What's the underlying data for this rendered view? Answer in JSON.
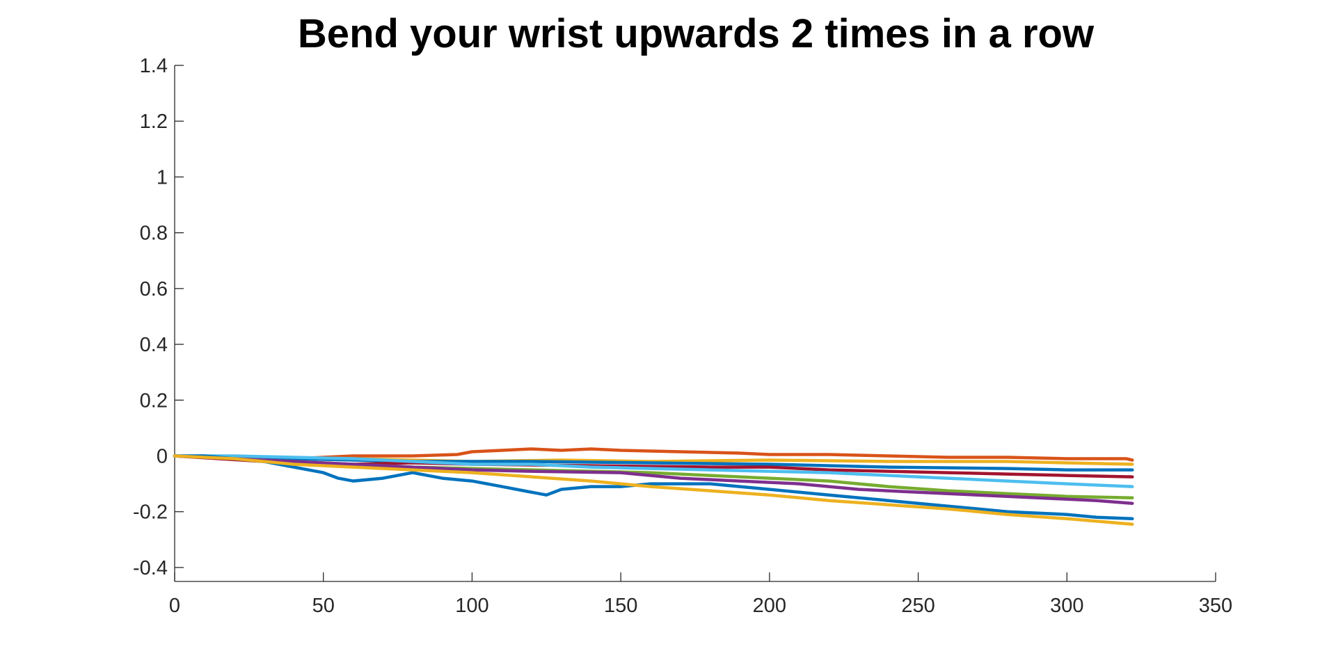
{
  "chart_data": {
    "type": "line",
    "title": "Bend your wrist upwards 2 times in a row",
    "xlabel": "",
    "ylabel": "",
    "xlim": [
      0,
      350
    ],
    "ylim": [
      -0.45,
      1.4
    ],
    "x_ticks": [
      0,
      50,
      100,
      150,
      200,
      250,
      300,
      350
    ],
    "x_tick_labels": [
      "0",
      "50",
      "100",
      "150",
      "200",
      "250",
      "300",
      "350"
    ],
    "y_ticks": [
      -0.4,
      -0.2,
      0,
      0.2,
      0.4,
      0.6,
      0.8,
      1,
      1.2,
      1.4
    ],
    "y_tick_labels": [
      "-0.4",
      "-0.2",
      "0",
      "0.2",
      "0.4",
      "0.6",
      "0.8",
      "1",
      "1.2",
      "1.4"
    ],
    "grid": false,
    "legend": "none",
    "series": [
      {
        "color": "#D95319",
        "x": [
          0,
          20,
          40,
          60,
          80,
          95,
          100,
          110,
          120,
          130,
          140,
          150,
          170,
          190,
          200,
          220,
          240,
          260,
          280,
          300,
          310,
          320,
          322
        ],
        "y": [
          0,
          -0.01,
          -0.01,
          0,
          0,
          0.005,
          0.015,
          0.02,
          0.025,
          0.02,
          0.025,
          0.02,
          0.015,
          0.01,
          0.005,
          0.005,
          0,
          -0.005,
          -0.005,
          -0.01,
          -0.01,
          -0.01,
          -0.015
        ]
      },
      {
        "color": "#EDB120",
        "x": [
          0,
          20,
          40,
          60,
          80,
          100,
          130,
          160,
          200,
          240,
          280,
          300,
          322
        ],
        "y": [
          0,
          -0.005,
          -0.01,
          -0.01,
          -0.015,
          -0.02,
          -0.015,
          -0.02,
          -0.015,
          -0.02,
          -0.02,
          -0.025,
          -0.03
        ]
      },
      {
        "color": "#0072BD",
        "x": [
          0,
          40,
          80,
          120,
          160,
          200,
          240,
          280,
          300,
          322
        ],
        "y": [
          0,
          -0.01,
          -0.02,
          -0.02,
          -0.025,
          -0.03,
          -0.04,
          -0.045,
          -0.05,
          -0.05
        ]
      },
      {
        "color": "#A2142F",
        "x": [
          0,
          30,
          60,
          80,
          100,
          140,
          180,
          200,
          220,
          240,
          260,
          280,
          300,
          322
        ],
        "y": [
          0,
          -0.02,
          -0.03,
          -0.025,
          -0.03,
          -0.035,
          -0.04,
          -0.04,
          -0.05,
          -0.055,
          -0.06,
          -0.065,
          -0.07,
          -0.075
        ]
      },
      {
        "color": "#4DBEEE",
        "x": [
          0,
          20,
          40,
          60,
          80,
          100,
          120,
          140,
          160,
          180,
          200,
          220,
          240,
          260,
          280,
          300,
          322
        ],
        "y": [
          0,
          0,
          -0.005,
          -0.01,
          -0.02,
          -0.03,
          -0.03,
          -0.04,
          -0.045,
          -0.05,
          -0.055,
          -0.06,
          -0.07,
          -0.08,
          -0.09,
          -0.1,
          -0.11
        ]
      },
      {
        "color": "#77AC30",
        "x": [
          0,
          40,
          80,
          120,
          160,
          180,
          200,
          220,
          240,
          260,
          280,
          300,
          322
        ],
        "y": [
          0,
          -0.02,
          -0.04,
          -0.05,
          -0.06,
          -0.07,
          -0.08,
          -0.09,
          -0.11,
          -0.125,
          -0.135,
          -0.145,
          -0.15
        ]
      },
      {
        "color": "#7E2F8E",
        "x": [
          0,
          40,
          80,
          100,
          120,
          150,
          170,
          190,
          210,
          230,
          250,
          270,
          290,
          310,
          322
        ],
        "y": [
          0,
          -0.02,
          -0.04,
          -0.05,
          -0.055,
          -0.06,
          -0.08,
          -0.09,
          -0.1,
          -0.12,
          -0.13,
          -0.14,
          -0.15,
          -0.16,
          -0.17
        ]
      },
      {
        "color": "#0072BD",
        "x": [
          0,
          10,
          20,
          30,
          40,
          50,
          55,
          60,
          70,
          80,
          90,
          100,
          110,
          120,
          125,
          130,
          140,
          150,
          160,
          180,
          200,
          220,
          240,
          260,
          280,
          300,
          310,
          322
        ],
        "y": [
          0,
          0,
          -0.01,
          -0.02,
          -0.04,
          -0.06,
          -0.08,
          -0.09,
          -0.08,
          -0.06,
          -0.08,
          -0.09,
          -0.11,
          -0.13,
          -0.14,
          -0.12,
          -0.11,
          -0.11,
          -0.1,
          -0.1,
          -0.12,
          -0.14,
          -0.16,
          -0.18,
          -0.2,
          -0.21,
          -0.22,
          -0.225
        ]
      },
      {
        "color": "#EDB120",
        "x": [
          0,
          20,
          40,
          60,
          80,
          100,
          120,
          140,
          160,
          180,
          200,
          220,
          240,
          260,
          280,
          300,
          322
        ],
        "y": [
          0,
          -0.01,
          -0.03,
          -0.04,
          -0.05,
          -0.06,
          -0.075,
          -0.09,
          -0.11,
          -0.125,
          -0.14,
          -0.16,
          -0.175,
          -0.19,
          -0.21,
          -0.225,
          -0.245
        ]
      }
    ]
  }
}
